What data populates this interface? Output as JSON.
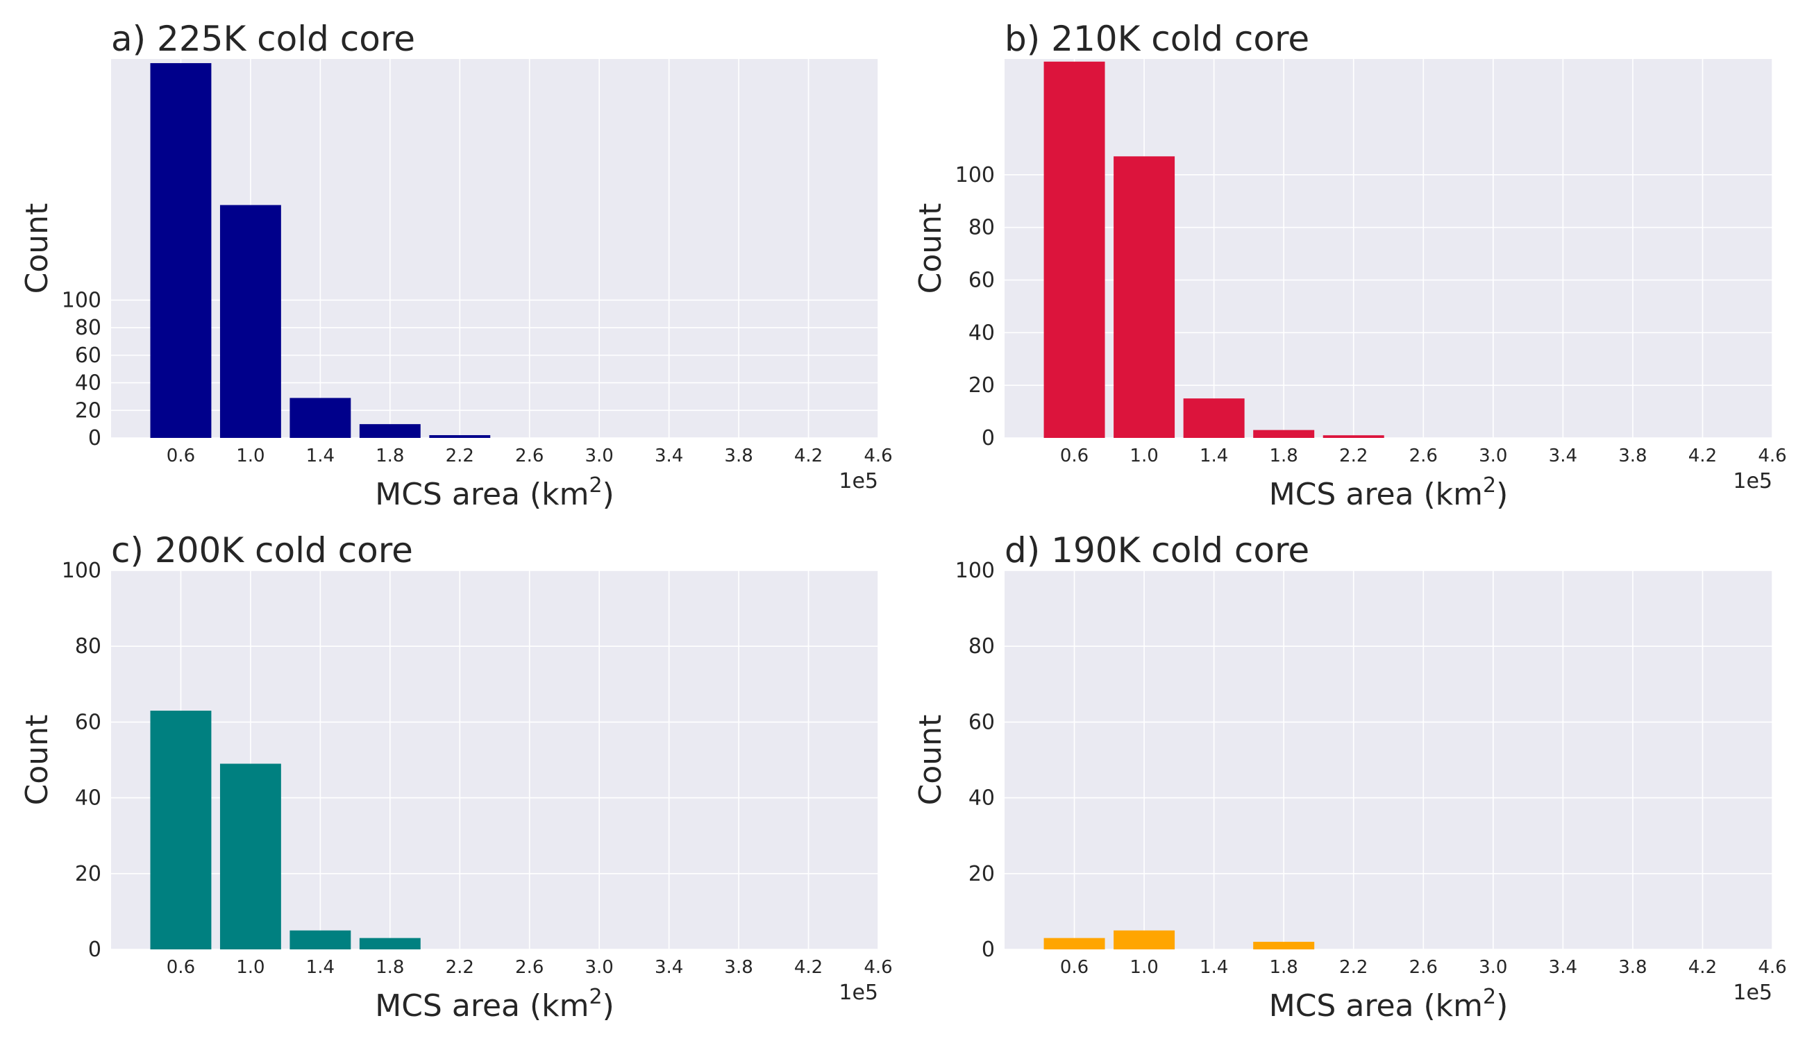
{
  "figure": {
    "panel_bg": "#eaeaf2",
    "grid_color": "#ffffff",
    "text_color": "#262626"
  },
  "chart_data": [
    {
      "type": "bar",
      "title": "a) 225K cold core",
      "xlabel": "MCS area (km",
      "xlabel_sup": "2",
      "xlabel_close": ")",
      "ylabel": "Count",
      "x_multiplier": "1e5",
      "x_ticks": [
        "0.6",
        "1.0",
        "1.4",
        "1.8",
        "2.2",
        "2.6",
        "3.0",
        "3.4",
        "3.8",
        "4.2",
        "4.6"
      ],
      "x_tick_values": [
        0.6,
        1.0,
        1.4,
        1.8,
        2.2,
        2.6,
        3.0,
        3.4,
        3.8,
        4.2,
        4.6
      ],
      "xlim": [
        0.2,
        4.6
      ],
      "y_ticks": [
        "0",
        "20",
        "40",
        "60",
        "80",
        "100"
      ],
      "y_tick_values": [
        0,
        20,
        40,
        60,
        80,
        100
      ],
      "ylim": [
        0,
        275
      ],
      "color": "#00008b",
      "bin_width": 0.35,
      "x": [
        0.6,
        1.0,
        1.4,
        1.8,
        2.2
      ],
      "values": [
        272,
        169,
        29,
        10,
        2
      ]
    },
    {
      "type": "bar",
      "title": "b) 210K cold core",
      "xlabel": "MCS area (km",
      "xlabel_sup": "2",
      "xlabel_close": ")",
      "ylabel": "Count",
      "x_multiplier": "1e5",
      "x_ticks": [
        "0.6",
        "1.0",
        "1.4",
        "1.8",
        "2.2",
        "2.6",
        "3.0",
        "3.4",
        "3.8",
        "4.2",
        "4.6"
      ],
      "x_tick_values": [
        0.6,
        1.0,
        1.4,
        1.8,
        2.2,
        2.6,
        3.0,
        3.4,
        3.8,
        4.2,
        4.6
      ],
      "xlim": [
        0.2,
        4.6
      ],
      "y_ticks": [
        "0",
        "20",
        "40",
        "60",
        "80",
        "100"
      ],
      "y_tick_values": [
        0,
        20,
        40,
        60,
        80,
        100
      ],
      "ylim": [
        0,
        144
      ],
      "color": "#dc143c",
      "bin_width": 0.35,
      "x": [
        0.6,
        1.0,
        1.4,
        1.8,
        2.2
      ],
      "values": [
        143,
        107,
        15,
        3,
        1
      ]
    },
    {
      "type": "bar",
      "title": "c) 200K cold core",
      "xlabel": "MCS area (km",
      "xlabel_sup": "2",
      "xlabel_close": ")",
      "ylabel": "Count",
      "x_multiplier": "1e5",
      "x_ticks": [
        "0.6",
        "1.0",
        "1.4",
        "1.8",
        "2.2",
        "2.6",
        "3.0",
        "3.4",
        "3.8",
        "4.2",
        "4.6"
      ],
      "x_tick_values": [
        0.6,
        1.0,
        1.4,
        1.8,
        2.2,
        2.6,
        3.0,
        3.4,
        3.8,
        4.2,
        4.6
      ],
      "xlim": [
        0.2,
        4.6
      ],
      "y_ticks": [
        "0",
        "20",
        "40",
        "60",
        "80",
        "100"
      ],
      "y_tick_values": [
        0,
        20,
        40,
        60,
        80,
        100
      ],
      "ylim": [
        0,
        100
      ],
      "color": "#008080",
      "bin_width": 0.35,
      "x": [
        0.6,
        1.0,
        1.4,
        1.8
      ],
      "values": [
        63,
        49,
        5,
        3
      ]
    },
    {
      "type": "bar",
      "title": "d) 190K cold core",
      "xlabel": "MCS area (km",
      "xlabel_sup": "2",
      "xlabel_close": ")",
      "ylabel": "Count",
      "x_multiplier": "1e5",
      "x_ticks": [
        "0.6",
        "1.0",
        "1.4",
        "1.8",
        "2.2",
        "2.6",
        "3.0",
        "3.4",
        "3.8",
        "4.2",
        "4.6"
      ],
      "x_tick_values": [
        0.6,
        1.0,
        1.4,
        1.8,
        2.2,
        2.6,
        3.0,
        3.4,
        3.8,
        4.2,
        4.6
      ],
      "xlim": [
        0.2,
        4.6
      ],
      "y_ticks": [
        "0",
        "20",
        "40",
        "60",
        "80",
        "100"
      ],
      "y_tick_values": [
        0,
        20,
        40,
        60,
        80,
        100
      ],
      "ylim": [
        0,
        100
      ],
      "color": "#ffa500",
      "bin_width": 0.35,
      "x": [
        0.6,
        1.0,
        1.8
      ],
      "values": [
        3,
        5,
        2
      ]
    }
  ]
}
